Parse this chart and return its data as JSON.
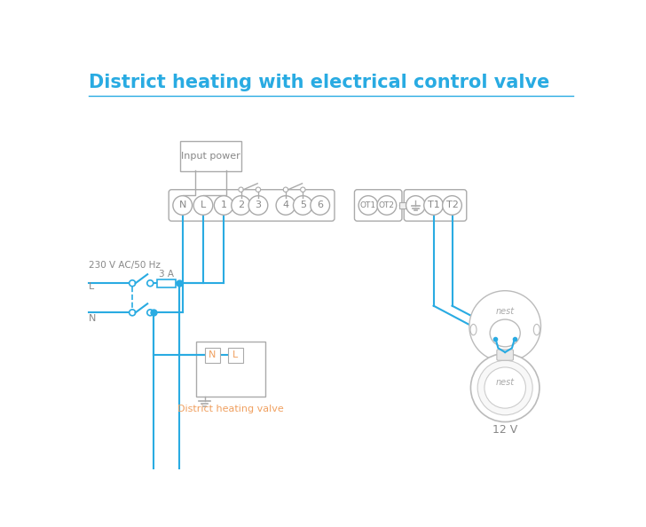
{
  "title": "District heating with electrical control valve",
  "title_color": "#29abe2",
  "title_fontsize": 15,
  "line_color": "#29abe2",
  "border_color": "#aaaaaa",
  "text_color": "#888888",
  "valve_text_color": "#f0a060",
  "background": "#ffffff",
  "valve_label": "District heating valve",
  "nest_label": "12 V",
  "input_power_label": "Input power",
  "fuse_label": "3 A",
  "left_label_ac": "230 V AC/50 Hz",
  "left_label_L": "L",
  "left_label_N": "N"
}
